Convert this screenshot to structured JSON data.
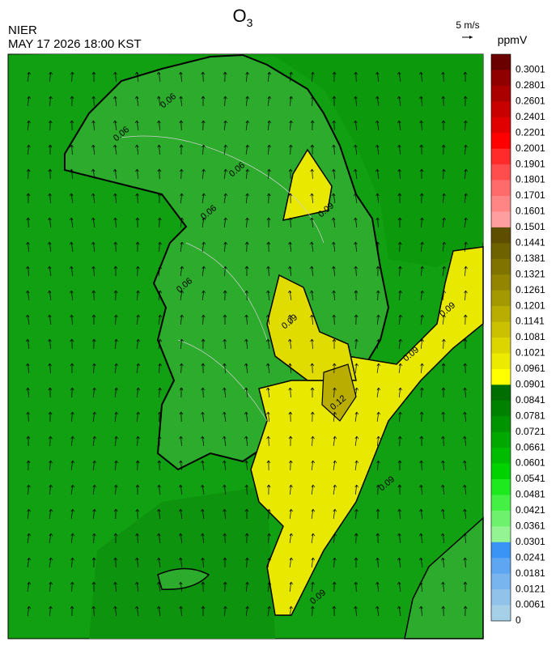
{
  "header": {
    "title": "O",
    "title_subscript": "3",
    "source": "NIER",
    "datetime": "MAY 17 2026 18:00 KST"
  },
  "wind_scale": {
    "label": "5 m/s"
  },
  "colorbar": {
    "unit": "ppmV",
    "labels": [
      "0.3001",
      "0.2801",
      "0.2601",
      "0.2401",
      "0.2201",
      "0.2001",
      "0.1901",
      "0.1801",
      "0.1701",
      "0.1601",
      "0.1501",
      "0.1441",
      "0.1381",
      "0.1321",
      "0.1261",
      "0.1201",
      "0.1141",
      "0.1081",
      "0.1021",
      "0.0961",
      "0.0901",
      "0.0841",
      "0.0781",
      "0.0721",
      "0.0661",
      "0.0601",
      "0.0541",
      "0.0481",
      "0.0421",
      "0.0361",
      "0.0301",
      "0.0241",
      "0.0181",
      "0.0121",
      "0.0061",
      "0"
    ],
    "colors": [
      "#6b0000",
      "#900000",
      "#aa0000",
      "#c80000",
      "#e00000",
      "#ff0000",
      "#ff2a2a",
      "#ff4d4d",
      "#ff6b6b",
      "#ff8585",
      "#ff9e9e",
      "#5e4f00",
      "#6e6100",
      "#807300",
      "#938500",
      "#a59900",
      "#b8ad00",
      "#cbc100",
      "#dcd500",
      "#ecea00",
      "#ffff00",
      "#006e00",
      "#008200",
      "#009400",
      "#00a800",
      "#00bc00",
      "#00d200",
      "#1ee81e",
      "#44f044",
      "#6ef26e",
      "#94f494",
      "#3a94f5",
      "#5ea6f2",
      "#78b4ee",
      "#90c2ea",
      "#a6d0e8"
    ]
  },
  "map": {
    "contour_labels": [
      "0.06",
      "0.06",
      "0.06",
      "0.06",
      "0.06",
      "0.09",
      "0.09",
      "0.09",
      "0.09",
      "0.12",
      "0.09",
      "0.09"
    ]
  }
}
